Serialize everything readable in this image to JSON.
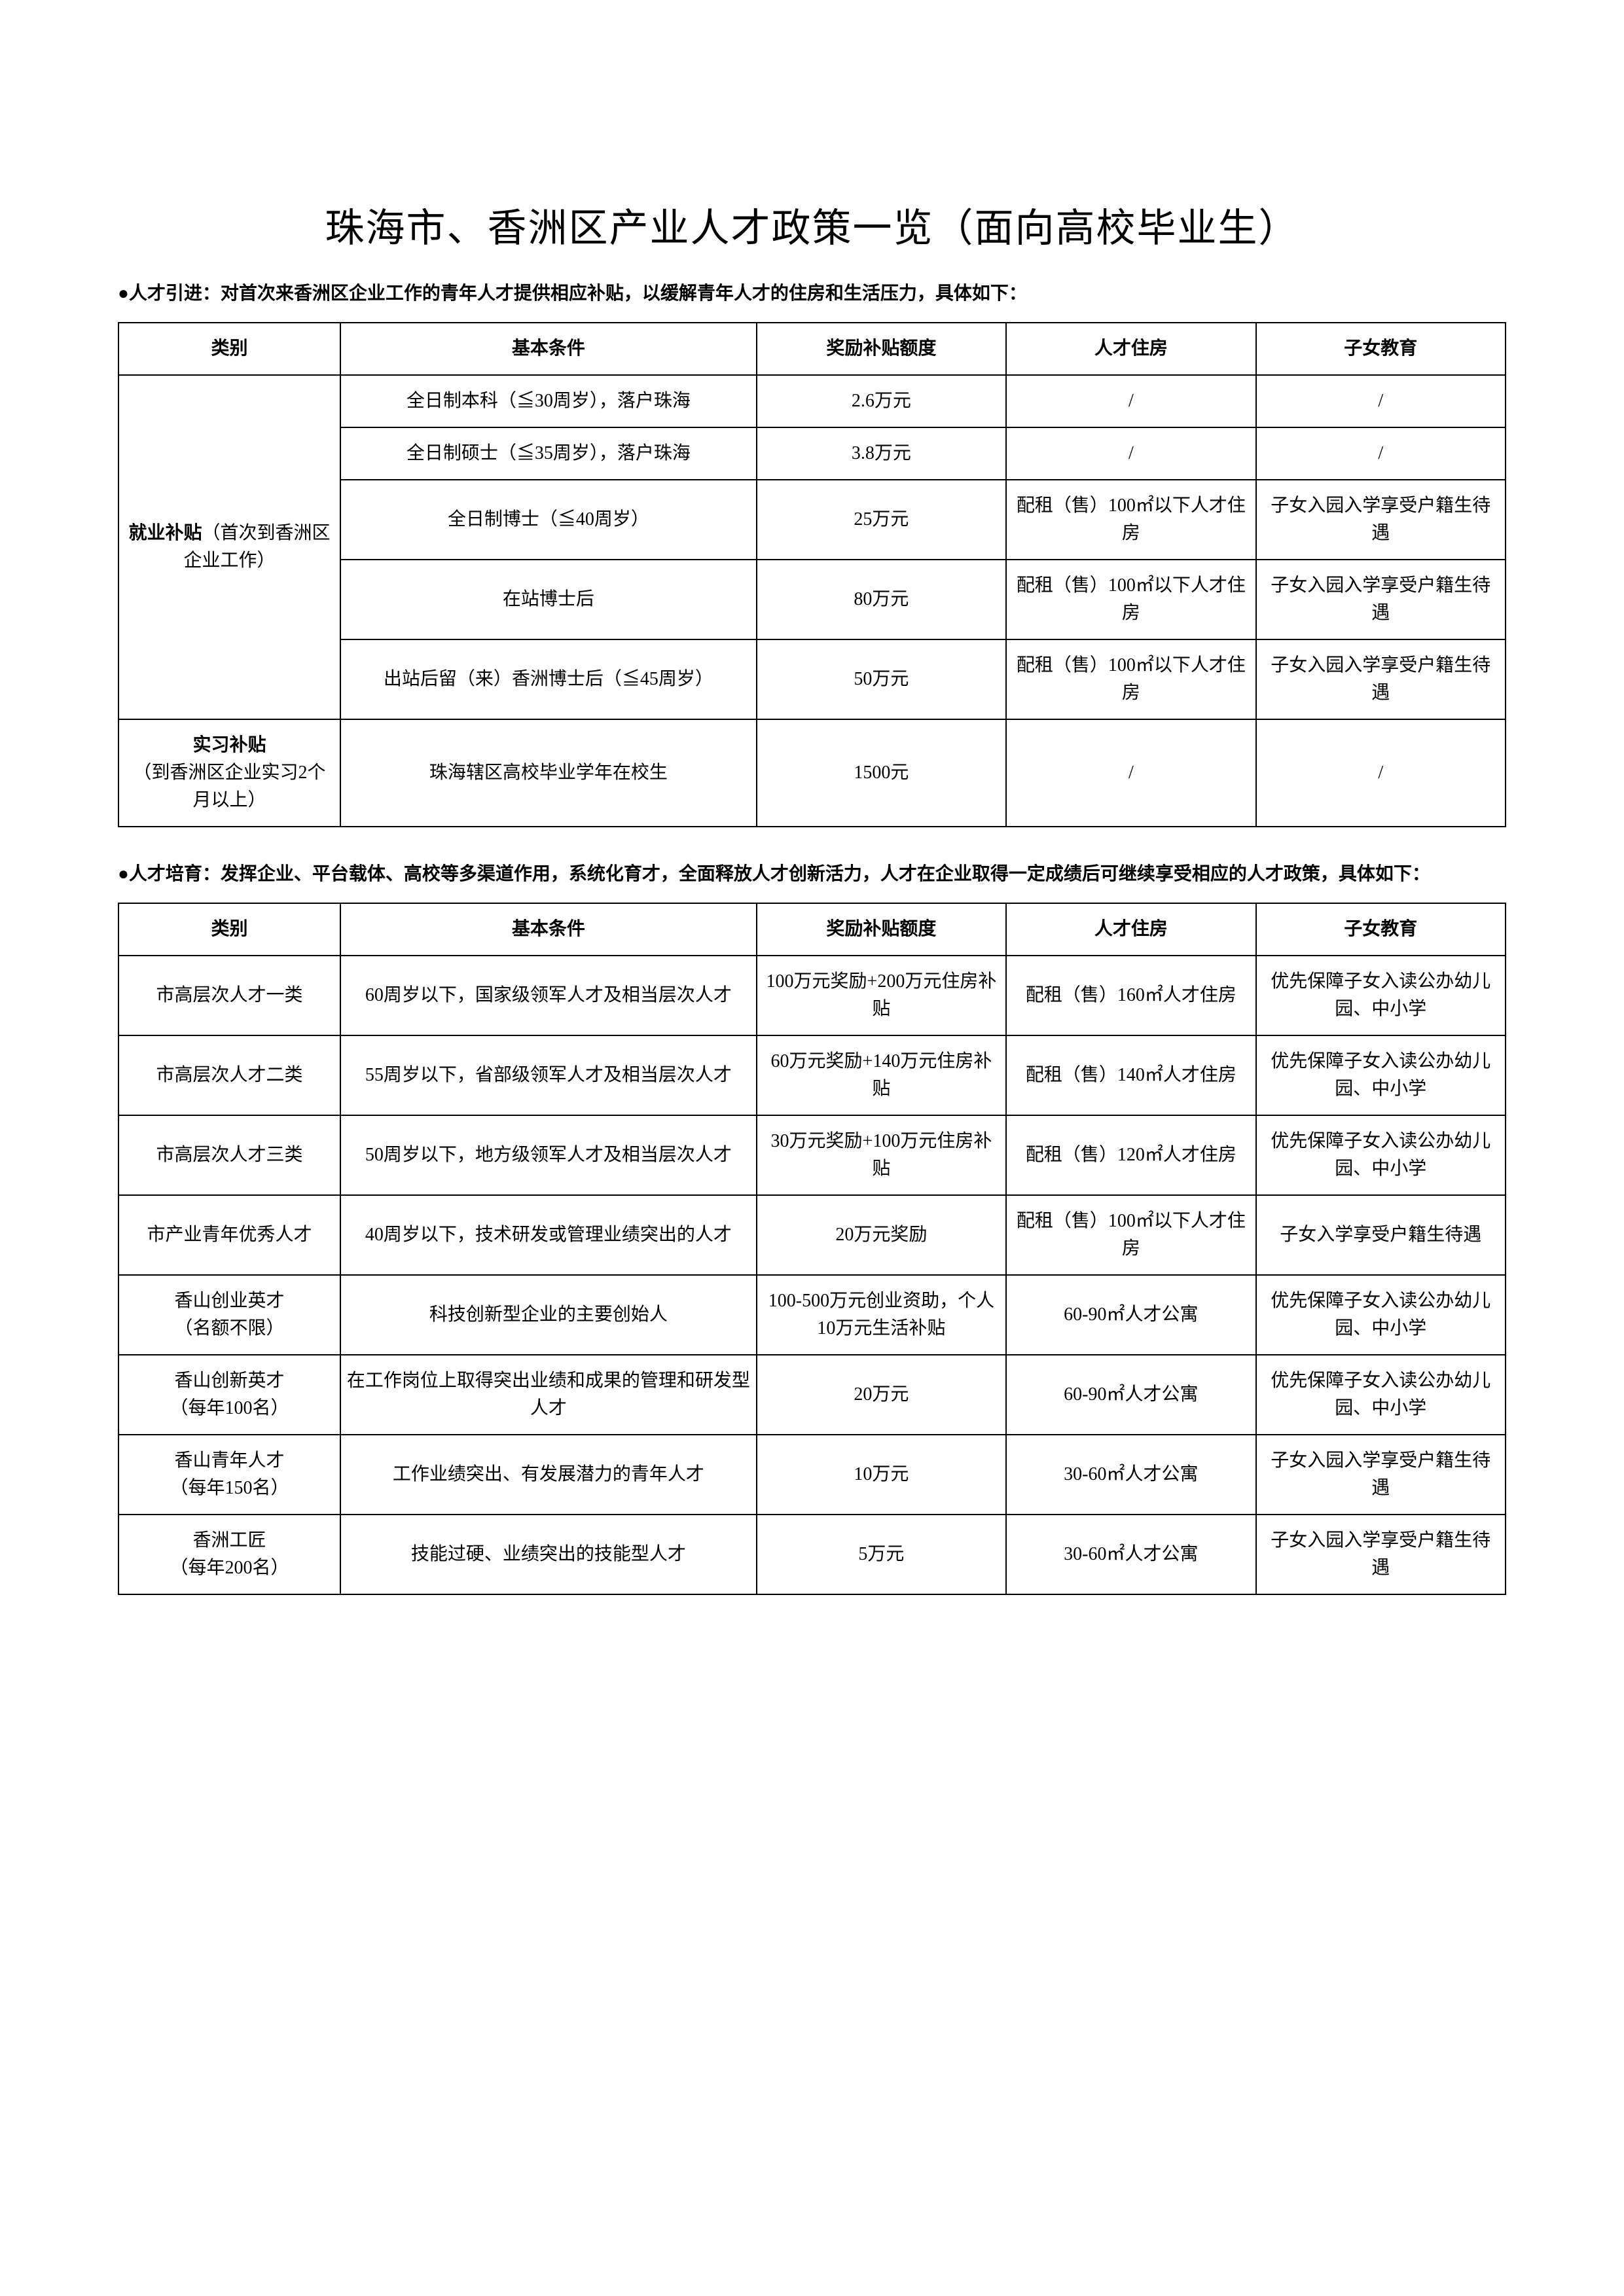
{
  "title": "珠海市、香洲区产业人才政策一览（面向高校毕业生）",
  "section1": {
    "intro": "●人才引进：对首次来香洲区企业工作的青年人才提供相应补贴，以缓解青年人才的住房和生活压力，具体如下：",
    "headers": [
      "类别",
      "基本条件",
      "奖励补贴额度",
      "人才住房",
      "子女教育"
    ],
    "cat1_name": "就业补贴",
    "cat1_note": "（首次到香洲区企业工作）",
    "cat2_line1": "实习补贴",
    "cat2_line2": "（到香洲区企业实习2个月以上）",
    "rows": [
      {
        "cond": "全日制本科（≦30周岁），落户珠海",
        "award": "2.6万元",
        "house": "/",
        "edu": "/"
      },
      {
        "cond": "全日制硕士（≦35周岁），落户珠海",
        "award": "3.8万元",
        "house": "/",
        "edu": "/"
      },
      {
        "cond": "全日制博士（≦40周岁）",
        "award": "25万元",
        "house": "配租（售）100㎡以下人才住房",
        "edu": "子女入园入学享受户籍生待遇"
      },
      {
        "cond": "在站博士后",
        "award": "80万元",
        "house": "配租（售）100㎡以下人才住房",
        "edu": "子女入园入学享受户籍生待遇"
      },
      {
        "cond": "出站后留（来）香洲博士后（≦45周岁）",
        "award": "50万元",
        "house": "配租（售）100㎡以下人才住房",
        "edu": "子女入园入学享受户籍生待遇"
      },
      {
        "cond": "珠海辖区高校毕业学年在校生",
        "award": "1500元",
        "house": "/",
        "edu": "/"
      }
    ]
  },
  "section2": {
    "intro": "●人才培育：发挥企业、平台载体、高校等多渠道作用，系统化育才，全面释放人才创新活力，人才在企业取得一定成绩后可继续享受相应的人才政策，具体如下：",
    "headers": [
      "类别",
      "基本条件",
      "奖励补贴额度",
      "人才住房",
      "子女教育"
    ],
    "rows": [
      {
        "cat": "市高层次人才一类",
        "cond": "60周岁以下，国家级领军人才及相当层次人才",
        "award": "100万元奖励+200万元住房补贴",
        "house": "配租（售）160㎡人才住房",
        "edu": "优先保障子女入读公办幼儿园、中小学"
      },
      {
        "cat": "市高层次人才二类",
        "cond": "55周岁以下，省部级领军人才及相当层次人才",
        "award": "60万元奖励+140万元住房补贴",
        "house": "配租（售）140㎡人才住房",
        "edu": "优先保障子女入读公办幼儿园、中小学"
      },
      {
        "cat": "市高层次人才三类",
        "cond": "50周岁以下，地方级领军人才及相当层次人才",
        "award": "30万元奖励+100万元住房补贴",
        "house": "配租（售）120㎡人才住房",
        "edu": "优先保障子女入读公办幼儿园、中小学"
      },
      {
        "cat": "市产业青年优秀人才",
        "cond": "40周岁以下，技术研发或管理业绩突出的人才",
        "award": "20万元奖励",
        "house": "配租（售）100㎡以下人才住房",
        "edu": "子女入学享受户籍生待遇"
      },
      {
        "cat": "香山创业英才\n（名额不限）",
        "cond": "科技创新型企业的主要创始人",
        "award": "100-500万元创业资助，个人10万元生活补贴",
        "house": "60-90㎡人才公寓",
        "edu": "优先保障子女入读公办幼儿园、中小学"
      },
      {
        "cat": "香山创新英才\n（每年100名）",
        "cond": "在工作岗位上取得突出业绩和成果的管理和研发型人才",
        "award": "20万元",
        "house": "60-90㎡人才公寓",
        "edu": "优先保障子女入读公办幼儿园、中小学"
      },
      {
        "cat": "香山青年人才\n（每年150名）",
        "cond": "工作业绩突出、有发展潜力的青年人才",
        "award": "10万元",
        "house": "30-60㎡人才公寓",
        "edu": "子女入园入学享受户籍生待遇"
      },
      {
        "cat": "香洲工匠\n（每年200名）",
        "cond": "技能过硬、业绩突出的技能型人才",
        "award": "5万元",
        "house": "30-60㎡人才公寓",
        "edu": "子女入园入学享受户籍生待遇"
      }
    ]
  }
}
